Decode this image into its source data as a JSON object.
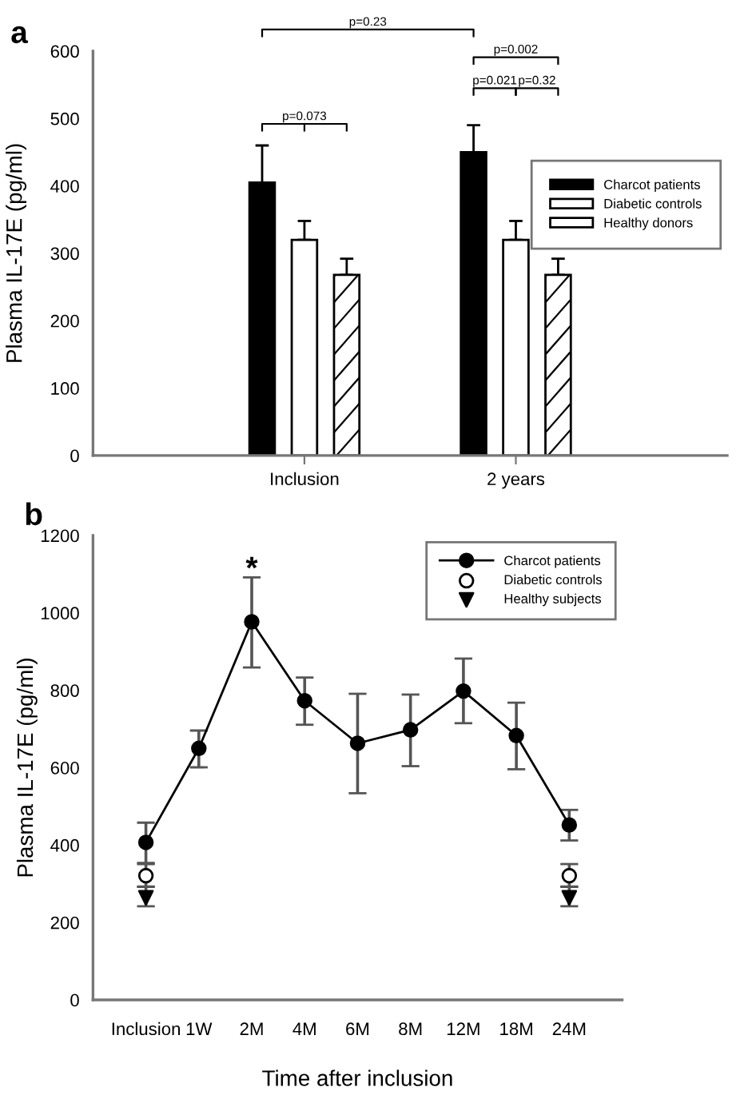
{
  "chart_data": [
    {
      "type": "bar",
      "title": "a",
      "ylabel": "Plasma IL-17E (pg/ml)",
      "categories": [
        "Inclusion",
        "2 years"
      ],
      "series": [
        {
          "name": "Charcot patients",
          "color": "#000000",
          "values": [
            405,
            450
          ],
          "errors": [
            [
              405,
              460
            ],
            [
              450,
              490
            ]
          ]
        },
        {
          "name": "Diabetic controls",
          "color": "#ffffff",
          "values": [
            320,
            320
          ],
          "errors": [
            [
              320,
              348
            ],
            [
              320,
              348
            ]
          ]
        },
        {
          "name": "Healthy donors",
          "color": "#ffffff",
          "values": [
            268,
            268
          ],
          "errors": [
            [
              268,
              292
            ],
            [
              268,
              292
            ]
          ]
        }
      ],
      "ylim": [
        0,
        600
      ],
      "yticks": [
        0,
        100,
        200,
        300,
        400,
        500,
        600
      ],
      "legend": "right",
      "grid": false,
      "annotations": [
        "p=0.23",
        "p=0.073",
        "p=0.002",
        "p=0.021",
        "p=0.32"
      ]
    },
    {
      "type": "line",
      "title": "b",
      "ylabel": "Plasma IL-17E (pg/ml)",
      "xlabel": "Time after inclusion",
      "categories": [
        "Inclusion",
        "1W",
        "2M",
        "4M",
        "6M",
        "8M",
        "12M",
        "18M",
        "24M"
      ],
      "series": [
        {
          "name": "Charcot patients",
          "color": "#000000",
          "marker": "circle",
          "values": [
            407,
            650,
            977,
            773,
            663,
            698,
            798,
            683,
            452
          ],
          "errors": [
            [
              354,
              458
            ],
            [
              601,
              696
            ],
            [
              859,
              1092
            ],
            [
              711,
              833
            ],
            [
              534,
              791
            ],
            [
              604,
              789
            ],
            [
              715,
              882
            ],
            [
              596,
              768
            ],
            [
              412,
              491
            ]
          ]
        },
        {
          "name": "Diabetic controls",
          "type": "scatter",
          "color": "#ffffff",
          "marker": "circle",
          "values": [
            321,
            null,
            null,
            null,
            null,
            null,
            null,
            null,
            321
          ],
          "errors": [
            [
              292,
              351
            ],
            null,
            null,
            null,
            null,
            null,
            null,
            null,
            [
              292,
              351
            ]
          ]
        },
        {
          "name": "Healthy subjects",
          "type": "scatter",
          "color": "#000000",
          "marker": "triangle",
          "values": [
            264,
            null,
            null,
            null,
            null,
            null,
            null,
            null,
            264
          ],
          "errors": [
            [
              242,
              293
            ],
            null,
            null,
            null,
            null,
            null,
            null,
            null,
            [
              242,
              293
            ]
          ]
        }
      ],
      "ylim": [
        0,
        1200
      ],
      "yticks": [
        0,
        200,
        400,
        600,
        800,
        1000,
        1200
      ],
      "legend": "top right",
      "grid": false,
      "annotations": [
        {
          "text": "*",
          "x": "2M",
          "y": 1110
        }
      ]
    }
  ]
}
